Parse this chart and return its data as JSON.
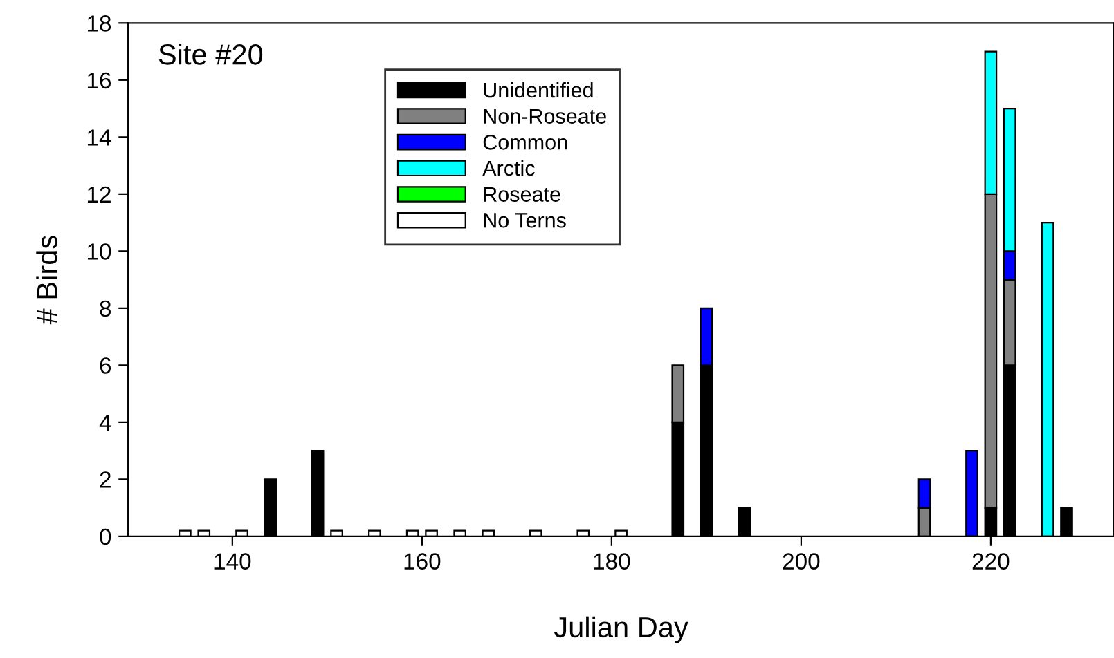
{
  "chart_data": {
    "type": "bar",
    "stacked": true,
    "xlabel": "Julian Day",
    "ylabel": "# Birds",
    "annotations": [
      "Site #20"
    ],
    "x": [
      135,
      137,
      141,
      144,
      149,
      151,
      155,
      159,
      161,
      164,
      167,
      172,
      177,
      181,
      187,
      190,
      194,
      213,
      218,
      220,
      222,
      226,
      228
    ],
    "series": [
      {
        "name": "Unidentified",
        "color": "#000000",
        "values": [
          null,
          null,
          null,
          2,
          3,
          null,
          null,
          null,
          null,
          null,
          null,
          null,
          null,
          null,
          4,
          6,
          1,
          null,
          null,
          1,
          6,
          null,
          1
        ]
      },
      {
        "name": "Non-Roseate",
        "color": "#808080",
        "values": [
          null,
          null,
          null,
          null,
          null,
          null,
          null,
          null,
          null,
          null,
          null,
          null,
          null,
          null,
          2,
          null,
          null,
          1,
          null,
          11,
          3,
          null,
          null
        ]
      },
      {
        "name": "Common",
        "color": "#0000ff",
        "values": [
          null,
          null,
          null,
          null,
          null,
          null,
          null,
          null,
          null,
          null,
          null,
          null,
          null,
          null,
          null,
          2,
          null,
          1,
          3,
          null,
          1,
          null,
          null
        ]
      },
      {
        "name": "Arctic",
        "color": "#00ffff",
        "values": [
          null,
          null,
          null,
          null,
          null,
          null,
          null,
          null,
          null,
          null,
          null,
          null,
          null,
          null,
          null,
          null,
          null,
          null,
          null,
          5,
          5,
          11,
          null
        ]
      },
      {
        "name": "Roseate",
        "color": "#00ff00",
        "values": [
          null,
          null,
          null,
          null,
          null,
          null,
          null,
          null,
          null,
          null,
          null,
          null,
          null,
          null,
          null,
          null,
          null,
          null,
          null,
          null,
          null,
          null,
          null
        ]
      },
      {
        "name": "No Terns",
        "color": "#ffffff",
        "values": [
          0.2,
          0.2,
          0.2,
          null,
          null,
          0.2,
          0.2,
          0.2,
          0.2,
          0.2,
          0.2,
          0.2,
          0.2,
          0.2,
          null,
          null,
          null,
          null,
          null,
          null,
          null,
          null,
          null
        ]
      }
    ],
    "xlim": [
      129,
      233
    ],
    "xticks": [
      140,
      160,
      180,
      200,
      220
    ],
    "ylim": [
      0,
      18
    ],
    "yticks": [
      0,
      2,
      4,
      6,
      8,
      10,
      12,
      14,
      16,
      18
    ],
    "grid": false,
    "legend": "top left"
  }
}
